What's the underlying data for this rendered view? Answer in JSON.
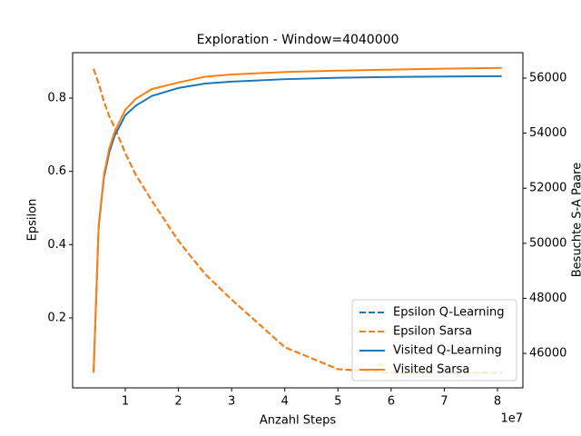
{
  "chart_data": {
    "type": "line",
    "title": "Exploration - Window=4040000",
    "x_label": "Anzahl Steps",
    "y_label": "Epsilon",
    "y2_label": "Besuchte S-A Paare",
    "x_offset_label": "1e7",
    "x": [
      4040000,
      5000000,
      6000000,
      7000000,
      8000000,
      10000000,
      12000000,
      15000000,
      20000000,
      25000000,
      30000000,
      40000000,
      50000000,
      60000000,
      70000000,
      80800000
    ],
    "xlim": [
      100000,
      84780000
    ],
    "xticks": [
      {
        "value": 10000000,
        "label": "1"
      },
      {
        "value": 20000000,
        "label": "2"
      },
      {
        "value": 30000000,
        "label": "3"
      },
      {
        "value": 40000000,
        "label": "4"
      },
      {
        "value": 50000000,
        "label": "5"
      },
      {
        "value": 60000000,
        "label": "6"
      },
      {
        "value": 70000000,
        "label": "7"
      },
      {
        "value": 80000000,
        "label": "8"
      }
    ],
    "ylim": [
      0.009,
      0.924
    ],
    "yticks": [
      0.2,
      0.4,
      0.6,
      0.8
    ],
    "y2lim": [
      44748,
      56923
    ],
    "y2ticks": [
      46000,
      48000,
      50000,
      52000,
      54000,
      56000
    ],
    "legend": "lower right",
    "series": [
      {
        "name": "Epsilon Q-Learning",
        "color": "#1f77b4",
        "dashed": true,
        "values": [
          0.88,
          0.84,
          0.79,
          0.75,
          0.72,
          0.65,
          0.59,
          0.52,
          0.41,
          0.32,
          0.25,
          0.12,
          0.06,
          0.05,
          0.05,
          0.05
        ]
      },
      {
        "name": "Epsilon Sarsa",
        "color": "#ff7f0e",
        "dashed": true,
        "values": [
          0.88,
          0.84,
          0.79,
          0.75,
          0.72,
          0.65,
          0.59,
          0.52,
          0.41,
          0.32,
          0.25,
          0.12,
          0.06,
          0.05,
          0.05,
          0.05
        ]
      },
      {
        "name": "Visited Q-Learning",
        "color": "#1f77b4",
        "dashed": false,
        "axis": "y2",
        "values": [
          45300,
          50600,
          52400,
          53300,
          53900,
          54650,
          55000,
          55350,
          55640,
          55800,
          55870,
          55960,
          56010,
          56040,
          56055,
          56070
        ]
      },
      {
        "name": "Visited Sarsa",
        "color": "#ff7f0e",
        "dashed": false,
        "axis": "y2",
        "values": [
          45300,
          50650,
          52500,
          53450,
          54050,
          54850,
          55250,
          55600,
          55840,
          56050,
          56130,
          56220,
          56270,
          56310,
          56340,
          56370
        ]
      }
    ]
  }
}
